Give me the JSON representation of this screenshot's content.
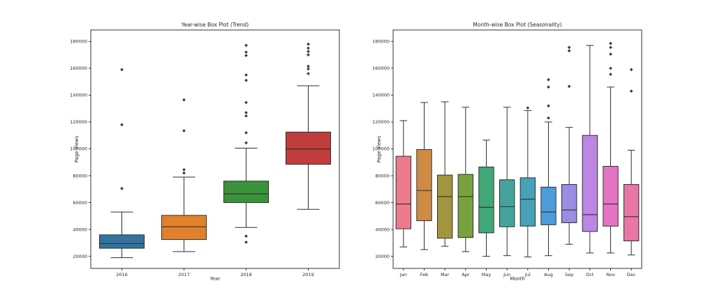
{
  "figure": {
    "background": "#ffffff",
    "edge_color": "#2f2f2f",
    "flier_color": "#3c3c3c"
  },
  "chart_data": [
    {
      "type": "box",
      "title": "Year-wise Box Plot (Trend)",
      "xlabel": "Year",
      "ylabel": "Page Views",
      "ylim": [
        11000,
        188500
      ],
      "yticks": [
        20000,
        40000,
        60000,
        80000,
        100000,
        120000,
        140000,
        160000,
        180000
      ],
      "categories": [
        "2016",
        "2017",
        "2018",
        "2019"
      ],
      "legend": "none",
      "grid": false,
      "series": [
        {
          "label": "2016",
          "color": "#3274a1",
          "whislo": 19000,
          "q1": 26000,
          "med": 29500,
          "q3": 36000,
          "whishi": 53000,
          "fliers": [
            70500,
            118000,
            159000
          ]
        },
        {
          "label": "2017",
          "color": "#e1812c",
          "whislo": 23500,
          "q1": 32500,
          "med": 42000,
          "q3": 50500,
          "whishi": 79000,
          "fliers": [
            82000,
            84500,
            113500,
            136500
          ]
        },
        {
          "label": "2018",
          "color": "#3a923a",
          "whislo": 41500,
          "q1": 60000,
          "med": 66500,
          "q3": 76000,
          "whishi": 100500,
          "fliers": [
            30500,
            35000,
            104500,
            112000,
            124500,
            127000,
            134500,
            151000,
            155000,
            169500,
            172000,
            177000
          ]
        },
        {
          "label": "2019",
          "color": "#c03d3e",
          "whislo": 55000,
          "q1": 88500,
          "med": 100000,
          "q3": 112500,
          "whishi": 147000,
          "fliers": [
            156000,
            159500,
            161500,
            170000,
            172500,
            175000,
            178000
          ]
        }
      ]
    },
    {
      "type": "box",
      "title": "Month-wise Box Plot (Seasonality)",
      "xlabel": "Month",
      "ylabel": "Page Views",
      "ylim": [
        11000,
        188500
      ],
      "yticks": [
        20000,
        40000,
        60000,
        80000,
        100000,
        120000,
        140000,
        160000,
        180000
      ],
      "categories": [
        "Jan",
        "Feb",
        "Mar",
        "Apr",
        "May",
        "Jun",
        "Jul",
        "Aug",
        "Sep",
        "Oct",
        "Nov",
        "Dec"
      ],
      "legend": "none",
      "grid": false,
      "series": [
        {
          "label": "Jan",
          "color": "#ec7a8c",
          "whislo": 27000,
          "q1": 40500,
          "med": 59000,
          "q3": 94500,
          "whishi": 121000,
          "fliers": []
        },
        {
          "label": "Feb",
          "color": "#cf8a44",
          "whislo": 25000,
          "q1": 46500,
          "med": 69000,
          "q3": 99500,
          "whishi": 134500,
          "fliers": []
        },
        {
          "label": "Mar",
          "color": "#a3953f",
          "whislo": 27500,
          "q1": 33500,
          "med": 64500,
          "q3": 80500,
          "whishi": 135000,
          "fliers": []
        },
        {
          "label": "Apr",
          "color": "#78a23f",
          "whislo": 23500,
          "q1": 34000,
          "med": 64500,
          "q3": 81000,
          "whishi": 131000,
          "fliers": []
        },
        {
          "label": "May",
          "color": "#42a777",
          "whislo": 20000,
          "q1": 37500,
          "med": 56500,
          "q3": 86500,
          "whishi": 106500,
          "fliers": []
        },
        {
          "label": "Jun",
          "color": "#44a49d",
          "whislo": 20500,
          "q1": 42000,
          "med": 57000,
          "q3": 77000,
          "whishi": 131000,
          "fliers": []
        },
        {
          "label": "Jul",
          "color": "#46a1b9",
          "whislo": 19500,
          "q1": 42500,
          "med": 62500,
          "q3": 78500,
          "whishi": 128500,
          "fliers": [
            130500
          ]
        },
        {
          "label": "Aug",
          "color": "#4d9dda",
          "whislo": 20500,
          "q1": 43500,
          "med": 53000,
          "q3": 71500,
          "whishi": 120000,
          "fliers": [
            123000,
            132000,
            146000,
            151500
          ]
        },
        {
          "label": "Sep",
          "color": "#9c8ce4",
          "whislo": 29000,
          "q1": 45000,
          "med": 54500,
          "q3": 73500,
          "whishi": 116000,
          "fliers": [
            146500,
            173000,
            175500
          ]
        },
        {
          "label": "Oct",
          "color": "#bd85e4",
          "whislo": 22500,
          "q1": 38500,
          "med": 51000,
          "q3": 110000,
          "whishi": 177000,
          "fliers": []
        },
        {
          "label": "Nov",
          "color": "#e573c4",
          "whislo": 22500,
          "q1": 42500,
          "med": 59000,
          "q3": 87000,
          "whishi": 146000,
          "fliers": [
            155500,
            160000,
            170500,
            175500,
            178500
          ]
        },
        {
          "label": "Dec",
          "color": "#e876a7",
          "whislo": 21000,
          "q1": 31500,
          "med": 49500,
          "q3": 73500,
          "whishi": 99000,
          "fliers": [
            143000,
            159000
          ]
        }
      ]
    }
  ]
}
